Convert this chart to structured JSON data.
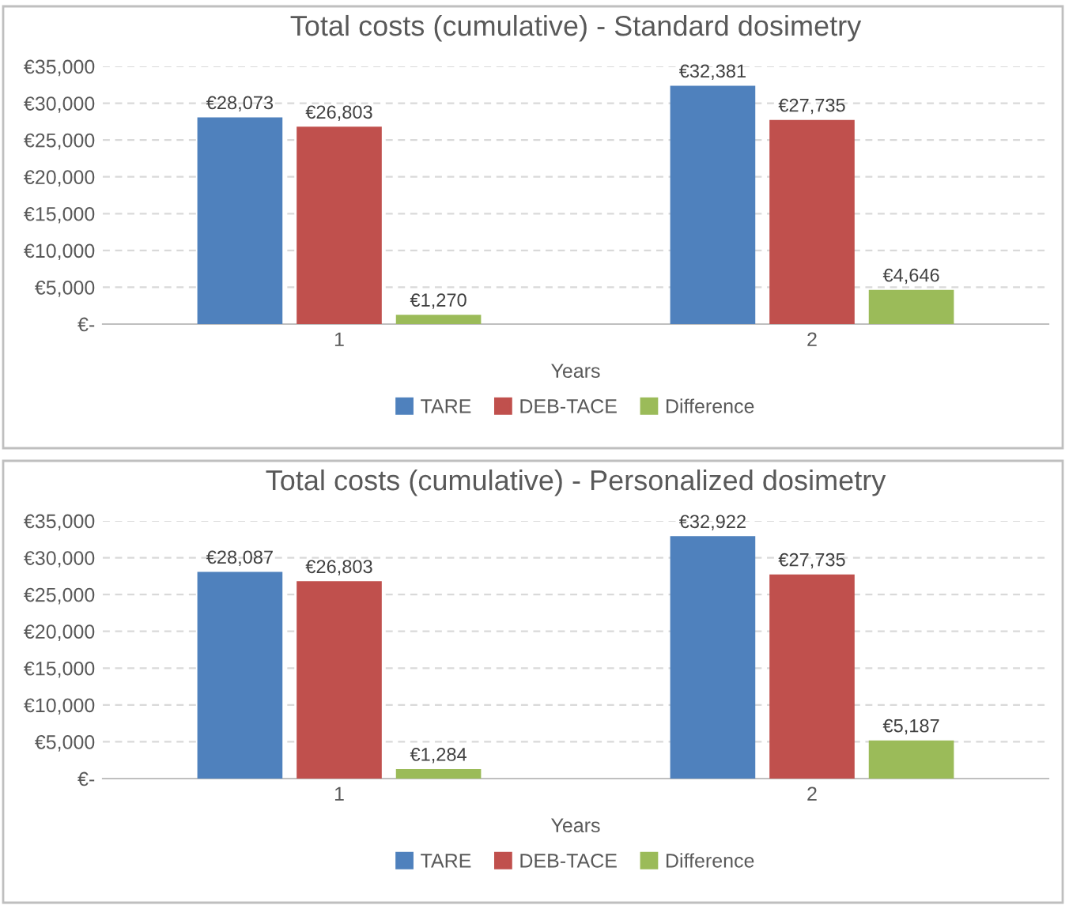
{
  "chart_data": [
    {
      "type": "bar",
      "title": "Total costs (cumulative) - Standard dosimetry",
      "xlabel": "Years",
      "categories": [
        "1",
        "2"
      ],
      "series": [
        {
          "name": "TARE",
          "color": "#4f81bd",
          "values": [
            28073,
            32381
          ],
          "value_labels": [
            "€28,073",
            "€32,381"
          ]
        },
        {
          "name": "DEB-TACE",
          "color": "#c0504d",
          "values": [
            26803,
            27735
          ],
          "value_labels": [
            "€26,803",
            "€27,735"
          ]
        },
        {
          "name": "Difference",
          "color": "#9bbb59",
          "values": [
            1270,
            4646
          ],
          "value_labels": [
            "€1,270",
            "€4,646"
          ]
        }
      ],
      "ylim": [
        0,
        35000
      ],
      "yticks": [
        {
          "value": 0,
          "label": "€-"
        },
        {
          "value": 5000,
          "label": "€5,000"
        },
        {
          "value": 10000,
          "label": "€10,000"
        },
        {
          "value": 15000,
          "label": "€15,000"
        },
        {
          "value": 20000,
          "label": "€20,000"
        },
        {
          "value": 25000,
          "label": "€25,000"
        },
        {
          "value": 30000,
          "label": "€30,000"
        },
        {
          "value": 35000,
          "label": "€35,000"
        }
      ],
      "grid": "y",
      "legend": "bottom"
    },
    {
      "type": "bar",
      "title": "Total costs (cumulative) - Personalized dosimetry",
      "xlabel": "Years",
      "categories": [
        "1",
        "2"
      ],
      "series": [
        {
          "name": "TARE",
          "color": "#4f81bd",
          "values": [
            28087,
            32922
          ],
          "value_labels": [
            "€28,087",
            "€32,922"
          ]
        },
        {
          "name": "DEB-TACE",
          "color": "#c0504d",
          "values": [
            26803,
            27735
          ],
          "value_labels": [
            "€26,803",
            "€27,735"
          ]
        },
        {
          "name": "Difference",
          "color": "#9bbb59",
          "values": [
            1284,
            5187
          ],
          "value_labels": [
            "€1,284",
            "€5,187"
          ]
        }
      ],
      "ylim": [
        0,
        35000
      ],
      "yticks": [
        {
          "value": 0,
          "label": "€-"
        },
        {
          "value": 5000,
          "label": "€5,000"
        },
        {
          "value": 10000,
          "label": "€10,000"
        },
        {
          "value": 15000,
          "label": "€15,000"
        },
        {
          "value": 20000,
          "label": "€20,000"
        },
        {
          "value": 25000,
          "label": "€25,000"
        },
        {
          "value": 30000,
          "label": "€30,000"
        },
        {
          "value": 35000,
          "label": "€35,000"
        }
      ],
      "grid": "y",
      "legend": "bottom"
    }
  ]
}
